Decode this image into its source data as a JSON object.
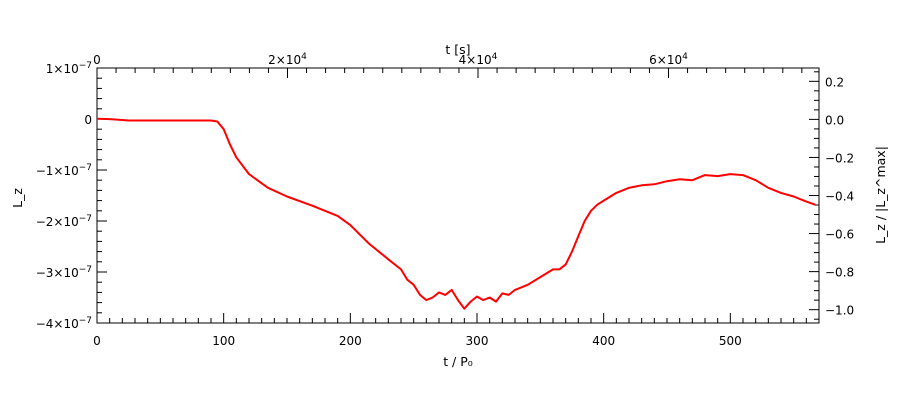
{
  "chart_data": {
    "type": "line",
    "xlabel": "t / P₀",
    "x2label": "t [s]",
    "ylabel": "L_z",
    "y2label": "L_z / |L_z^max|",
    "xlim": [
      0,
      570
    ],
    "x2lim": [
      0,
      75800
    ],
    "ylim": [
      -4e-07,
      1e-07
    ],
    "y2lim": [
      -1.07,
      0.27
    ],
    "x_ticks": [
      {
        "v": 0,
        "label": "0"
      },
      {
        "v": 100,
        "label": "100"
      },
      {
        "v": 200,
        "label": "200"
      },
      {
        "v": 300,
        "label": "300"
      },
      {
        "v": 400,
        "label": "400"
      },
      {
        "v": 500,
        "label": "500"
      }
    ],
    "x_minor_step": 10,
    "x2_ticks": [
      {
        "v": 0,
        "mant": "0",
        "exp": ""
      },
      {
        "v": 20000,
        "mant": "2×10",
        "exp": "4"
      },
      {
        "v": 40000,
        "mant": "4×10",
        "exp": "4"
      },
      {
        "v": 60000,
        "mant": "6×10",
        "exp": "4"
      }
    ],
    "x2_minor_step": 2000,
    "y_ticks": [
      {
        "v": 1e-07,
        "mant": "1×10",
        "exp": "−7"
      },
      {
        "v": 0,
        "mant": "0",
        "exp": ""
      },
      {
        "v": -1e-07,
        "mant": "−1×10",
        "exp": "−7"
      },
      {
        "v": -2e-07,
        "mant": "−2×10",
        "exp": "−7"
      },
      {
        "v": -3e-07,
        "mant": "−3×10",
        "exp": "−7"
      },
      {
        "v": -4e-07,
        "mant": "−4×10",
        "exp": "−7"
      }
    ],
    "y_minor_step": 2e-08,
    "y2_ticks": [
      {
        "v": 0.2,
        "label": "0.2"
      },
      {
        "v": 0.0,
        "label": "0.0"
      },
      {
        "v": -0.2,
        "label": "−0.2"
      },
      {
        "v": -0.4,
        "label": "−0.4"
      },
      {
        "v": -0.6,
        "label": "−0.6"
      },
      {
        "v": -0.8,
        "label": "−0.8"
      },
      {
        "v": -1.0,
        "label": "−1.0"
      }
    ],
    "y2_minor_step": 0.05,
    "grid": false,
    "series": [
      {
        "color": "#ff0000",
        "x": [
          0,
          10,
          20,
          25,
          40,
          60,
          80,
          90,
          95,
          100,
          105,
          110,
          120,
          135,
          150,
          170,
          190,
          200,
          215,
          230,
          240,
          245,
          250,
          255,
          260,
          265,
          270,
          275,
          280,
          285,
          290,
          295,
          300,
          305,
          310,
          315,
          320,
          325,
          330,
          340,
          350,
          360,
          365,
          370,
          375,
          380,
          385,
          390,
          395,
          400,
          410,
          420,
          430,
          440,
          450,
          460,
          470,
          480,
          490,
          500,
          510,
          520,
          530,
          540,
          550,
          560,
          567
        ],
        "y": [
          3e-10,
          -2e-10,
          -2e-09,
          -3e-09,
          -3e-09,
          -3e-09,
          -3e-09,
          -3e-09,
          -5e-09,
          -2e-08,
          -5e-08,
          -7.5e-08,
          -1.08e-07,
          -1.35e-07,
          -1.52e-07,
          -1.7e-07,
          -1.9e-07,
          -2.08e-07,
          -2.45e-07,
          -2.75e-07,
          -2.95e-07,
          -3.15e-07,
          -3.25e-07,
          -3.45e-07,
          -3.55e-07,
          -3.5e-07,
          -3.4e-07,
          -3.45e-07,
          -3.35e-07,
          -3.55e-07,
          -3.72e-07,
          -3.58e-07,
          -3.48e-07,
          -3.55e-07,
          -3.5e-07,
          -3.58e-07,
          -3.42e-07,
          -3.45e-07,
          -3.35e-07,
          -3.25e-07,
          -3.1e-07,
          -2.95e-07,
          -2.95e-07,
          -2.85e-07,
          -2.6e-07,
          -2.3e-07,
          -2e-07,
          -1.8e-07,
          -1.68e-07,
          -1.6e-07,
          -1.45e-07,
          -1.35e-07,
          -1.3e-07,
          -1.28e-07,
          -1.22e-07,
          -1.18e-07,
          -1.2e-07,
          -1.1e-07,
          -1.12e-07,
          -1.08e-07,
          -1.1e-07,
          -1.2e-07,
          -1.35e-07,
          -1.45e-07,
          -1.52e-07,
          -1.62e-07,
          -1.68e-07
        ]
      }
    ]
  }
}
